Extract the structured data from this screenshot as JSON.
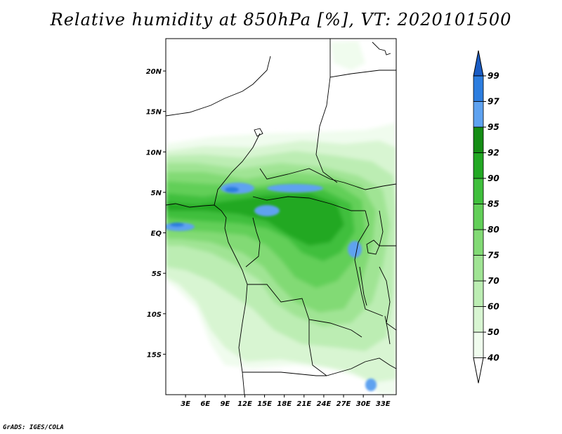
{
  "title": "Relative humidity at 850hPa [%], VT: 2020101500",
  "footer": "GrADS: IGES/COLA",
  "map": {
    "lat_range": [
      -20,
      24
    ],
    "lon_range": [
      0,
      35
    ],
    "lat_ticks": [
      {
        "lat": 20,
        "label": "20N"
      },
      {
        "lat": 15,
        "label": "15N"
      },
      {
        "lat": 10,
        "label": "10N"
      },
      {
        "lat": 5,
        "label": "5N"
      },
      {
        "lat": 0,
        "label": "EQ"
      },
      {
        "lat": -5,
        "label": "5S"
      },
      {
        "lat": -10,
        "label": "10S"
      },
      {
        "lat": -15,
        "label": "15S"
      }
    ],
    "lon_ticks": [
      {
        "lon": 3,
        "label": "3E"
      },
      {
        "lon": 6,
        "label": "6E"
      },
      {
        "lon": 9,
        "label": "9E"
      },
      {
        "lon": 12,
        "label": "12E"
      },
      {
        "lon": 15,
        "label": "15E"
      },
      {
        "lon": 18,
        "label": "18E"
      },
      {
        "lon": 21,
        "label": "21E"
      },
      {
        "lon": 24,
        "label": "24E"
      },
      {
        "lon": 27,
        "label": "27E"
      },
      {
        "lon": 30,
        "label": "30E"
      },
      {
        "lon": 33,
        "label": "33E"
      }
    ]
  },
  "colorbar": {
    "levels": [
      {
        "value": 40,
        "label": "40",
        "color": "#f0fcee"
      },
      {
        "value": 50,
        "label": "50",
        "color": "#d8f5d2"
      },
      {
        "value": 60,
        "label": "60",
        "color": "#bcedb3"
      },
      {
        "value": 70,
        "label": "70",
        "color": "#a0e494"
      },
      {
        "value": 75,
        "label": "75",
        "color": "#82da75"
      },
      {
        "value": 80,
        "label": "80",
        "color": "#62cf58"
      },
      {
        "value": 85,
        "label": "85",
        "color": "#3fbf3c"
      },
      {
        "value": 90,
        "label": "90",
        "color": "#22a823"
      },
      {
        "value": 92,
        "label": "92",
        "color": "#148d14"
      },
      {
        "value": 95,
        "label": "95",
        "color": "#5ea2f0"
      },
      {
        "value": 97,
        "label": "97",
        "color": "#2c7ddf"
      },
      {
        "value": 99,
        "label": "99",
        "color": "#1a5cc4"
      }
    ],
    "below_color": "#ffffff"
  }
}
